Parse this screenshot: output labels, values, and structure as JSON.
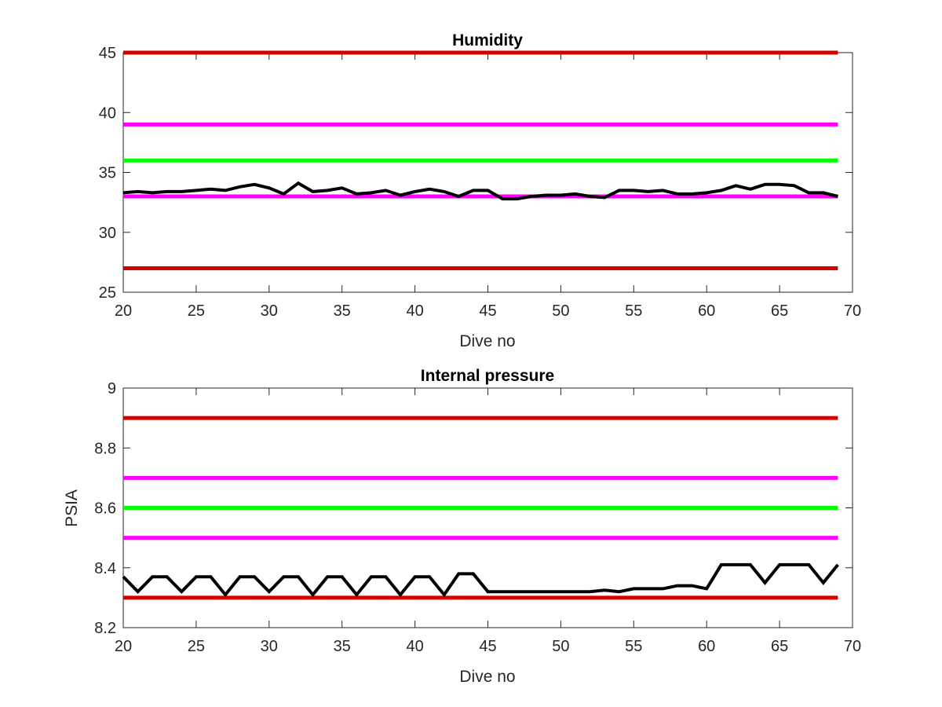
{
  "chart_data": [
    {
      "type": "line",
      "title": "Humidity",
      "xlabel": "Dive no",
      "ylabel": "",
      "xlim": [
        20,
        70
      ],
      "ylim": [
        25,
        45
      ],
      "xticks": [
        20,
        25,
        30,
        35,
        40,
        45,
        50,
        55,
        60,
        65,
        70
      ],
      "yticks": [
        25,
        30,
        35,
        40,
        45
      ],
      "xtick_labels": [
        "20",
        "25",
        "30",
        "35",
        "40",
        "45",
        "50",
        "55",
        "60",
        "65",
        "70"
      ],
      "ytick_labels": [
        "25",
        "30",
        "35",
        "40",
        "45"
      ],
      "grid": false,
      "reference_lines": [
        {
          "y": 45,
          "color": "#d40000",
          "x": [
            20,
            69
          ]
        },
        {
          "y": 39,
          "color": "#ff00ff",
          "x": [
            20,
            69
          ]
        },
        {
          "y": 36,
          "color": "#00ff00",
          "x": [
            20,
            69
          ]
        },
        {
          "y": 33,
          "color": "#ff00ff",
          "x": [
            20,
            69
          ]
        },
        {
          "y": 27,
          "color": "#d40000",
          "x": [
            20,
            69
          ]
        }
      ],
      "series": [
        {
          "color": "#000000",
          "x": [
            20,
            21,
            22,
            23,
            24,
            25,
            26,
            27,
            28,
            29,
            30,
            31,
            32,
            33,
            34,
            35,
            36,
            37,
            38,
            39,
            40,
            41,
            42,
            43,
            44,
            45,
            46,
            47,
            48,
            49,
            50,
            51,
            52,
            53,
            54,
            55,
            56,
            57,
            58,
            59,
            60,
            61,
            62,
            63,
            64,
            65,
            66,
            67,
            68,
            69
          ],
          "y": [
            33.3,
            33.4,
            33.3,
            33.4,
            33.4,
            33.5,
            33.6,
            33.5,
            33.8,
            34.0,
            33.7,
            33.2,
            34.1,
            33.4,
            33.5,
            33.7,
            33.2,
            33.3,
            33.5,
            33.1,
            33.4,
            33.6,
            33.4,
            33.0,
            33.5,
            33.5,
            32.8,
            32.8,
            33.0,
            33.1,
            33.1,
            33.2,
            33.0,
            32.9,
            33.5,
            33.5,
            33.4,
            33.5,
            33.2,
            33.2,
            33.3,
            33.5,
            33.9,
            33.6,
            34.0,
            34.0,
            33.9,
            33.3,
            33.3,
            33.0
          ]
        }
      ]
    },
    {
      "type": "line",
      "title": "Internal pressure",
      "xlabel": "Dive no",
      "ylabel": "PSIA",
      "xlim": [
        20,
        70
      ],
      "ylim": [
        8.2,
        9.0
      ],
      "xticks": [
        20,
        25,
        30,
        35,
        40,
        45,
        50,
        55,
        60,
        65,
        70
      ],
      "yticks": [
        8.2,
        8.4,
        8.6,
        8.8,
        9.0
      ],
      "xtick_labels": [
        "20",
        "25",
        "30",
        "35",
        "40",
        "45",
        "50",
        "55",
        "60",
        "65",
        "70"
      ],
      "ytick_labels": [
        "8.2",
        "8.4",
        "8.6",
        "8.8",
        "9"
      ],
      "grid": false,
      "reference_lines": [
        {
          "y": 8.9,
          "color": "#d40000",
          "x": [
            20,
            69
          ]
        },
        {
          "y": 8.7,
          "color": "#ff00ff",
          "x": [
            20,
            69
          ]
        },
        {
          "y": 8.6,
          "color": "#00ff00",
          "x": [
            20,
            69
          ]
        },
        {
          "y": 8.5,
          "color": "#ff00ff",
          "x": [
            20,
            69
          ]
        },
        {
          "y": 8.3,
          "color": "#d40000",
          "x": [
            20,
            69
          ]
        }
      ],
      "series": [
        {
          "color": "#000000",
          "x": [
            20,
            21,
            22,
            23,
            24,
            25,
            26,
            27,
            28,
            29,
            30,
            31,
            32,
            33,
            34,
            35,
            36,
            37,
            38,
            39,
            40,
            41,
            42,
            43,
            44,
            45,
            46,
            47,
            48,
            49,
            50,
            51,
            52,
            53,
            54,
            55,
            56,
            57,
            58,
            59,
            60,
            61,
            62,
            63,
            64,
            65,
            66,
            67,
            68,
            69
          ],
          "y": [
            8.37,
            8.32,
            8.37,
            8.37,
            8.32,
            8.37,
            8.37,
            8.31,
            8.37,
            8.37,
            8.32,
            8.37,
            8.37,
            8.31,
            8.37,
            8.37,
            8.31,
            8.37,
            8.37,
            8.31,
            8.37,
            8.37,
            8.31,
            8.38,
            8.38,
            8.32,
            8.32,
            8.32,
            8.32,
            8.32,
            8.32,
            8.32,
            8.32,
            8.325,
            8.32,
            8.33,
            8.33,
            8.33,
            8.34,
            8.34,
            8.33,
            8.41,
            8.41,
            8.41,
            8.35,
            8.41,
            8.41,
            8.41,
            8.35,
            8.41
          ]
        }
      ]
    }
  ]
}
